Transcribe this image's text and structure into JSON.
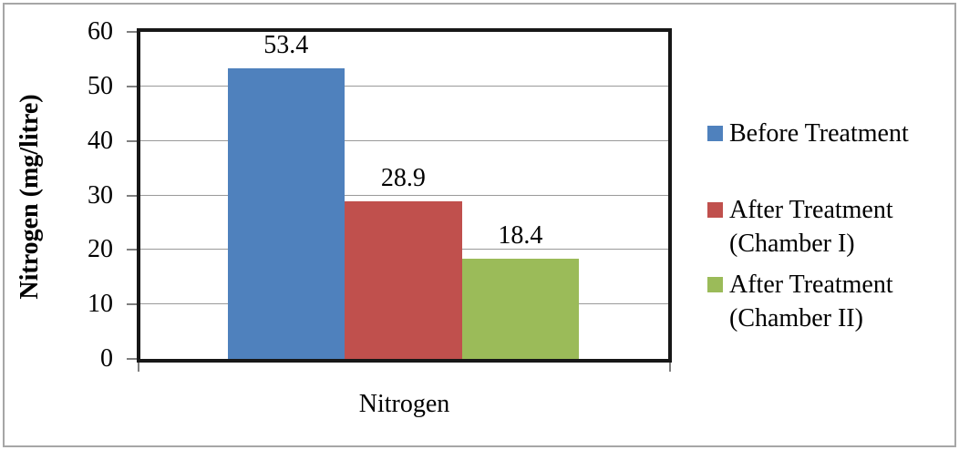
{
  "chart_data": {
    "type": "bar",
    "title": "",
    "categories": [
      "Nitrogen"
    ],
    "series": [
      {
        "name": "Before Treatment",
        "legend_lines": [
          "Before Treatment"
        ],
        "value": 53.4,
        "label": "53.4",
        "color": "#4F81BD"
      },
      {
        "name": "After Treatment (Chamber I)",
        "legend_lines": [
          "After Treatment",
          "(Chamber I)"
        ],
        "value": 28.9,
        "label": "28.9",
        "color": "#C0504D"
      },
      {
        "name": "After Treatment (Chamber II)",
        "legend_lines": [
          "After Treatment",
          "(Chamber II)"
        ],
        "value": 18.4,
        "label": "18.4",
        "color": "#9BBB59"
      }
    ],
    "xlabel": "Nitrogen",
    "ylabel": "Nitrogen (mg/litre)",
    "ylim": [
      0,
      60
    ],
    "yticks": [
      0,
      10,
      20,
      30,
      40,
      50,
      60
    ],
    "grid": true,
    "legend_position": "right"
  },
  "colors": {
    "gridline": "#9a9a9a",
    "axis_border": "#171717",
    "tick_mark": "#7f7f7f",
    "frame_border": "#a6a6a6",
    "background": "#ffffff",
    "text": "#000000"
  }
}
